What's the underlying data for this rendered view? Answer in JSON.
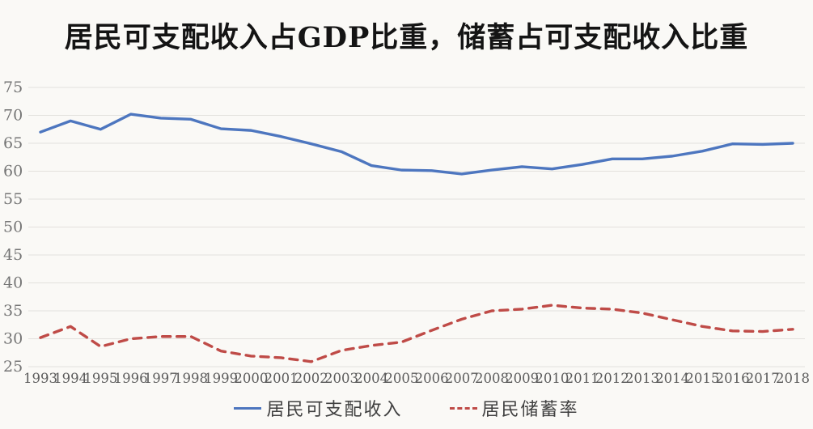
{
  "chart_data": {
    "type": "line",
    "title": "居民可支配收入占GDP比重，储蓄占可支配收入比重",
    "x": [
      1993,
      1994,
      1995,
      1996,
      1997,
      1998,
      1999,
      2000,
      2001,
      2002,
      2003,
      2004,
      2005,
      2006,
      2007,
      2008,
      2009,
      2010,
      2011,
      2012,
      2013,
      2014,
      2015,
      2016,
      2017,
      2018
    ],
    "series": [
      {
        "name": "居民可支配收入",
        "style": "solid",
        "color": "#4d76bf",
        "values": [
          67.0,
          69.0,
          67.5,
          70.2,
          69.5,
          69.3,
          67.6,
          67.3,
          66.2,
          64.9,
          63.5,
          61.0,
          60.2,
          60.1,
          59.5,
          60.2,
          60.8,
          60.4,
          61.2,
          62.2,
          62.2,
          62.7,
          63.6,
          64.9,
          64.8,
          65.0
        ]
      },
      {
        "name": "居民储蓄率",
        "style": "dashed",
        "color": "#bf4b47",
        "values": [
          30.2,
          32.2,
          28.6,
          30.0,
          30.4,
          30.4,
          27.8,
          26.9,
          26.6,
          25.9,
          27.9,
          28.8,
          29.4,
          31.5,
          33.5,
          35.0,
          35.3,
          36.0,
          35.5,
          35.3,
          34.6,
          33.4,
          32.2,
          31.4,
          31.3,
          31.7
        ]
      }
    ],
    "xlabel": "",
    "ylabel": "",
    "ylim": [
      25,
      75
    ],
    "y_ticks": [
      25,
      30,
      35,
      40,
      45,
      50,
      55,
      60,
      65,
      70,
      75
    ],
    "grid": true,
    "legend_position": "bottom"
  },
  "style": {
    "background": "#faf9f6",
    "gridline_color": "#e3e1dd",
    "y_tick_color": "#757575",
    "x_tick_color": "#5c5c5c",
    "title_color": "#141414"
  }
}
